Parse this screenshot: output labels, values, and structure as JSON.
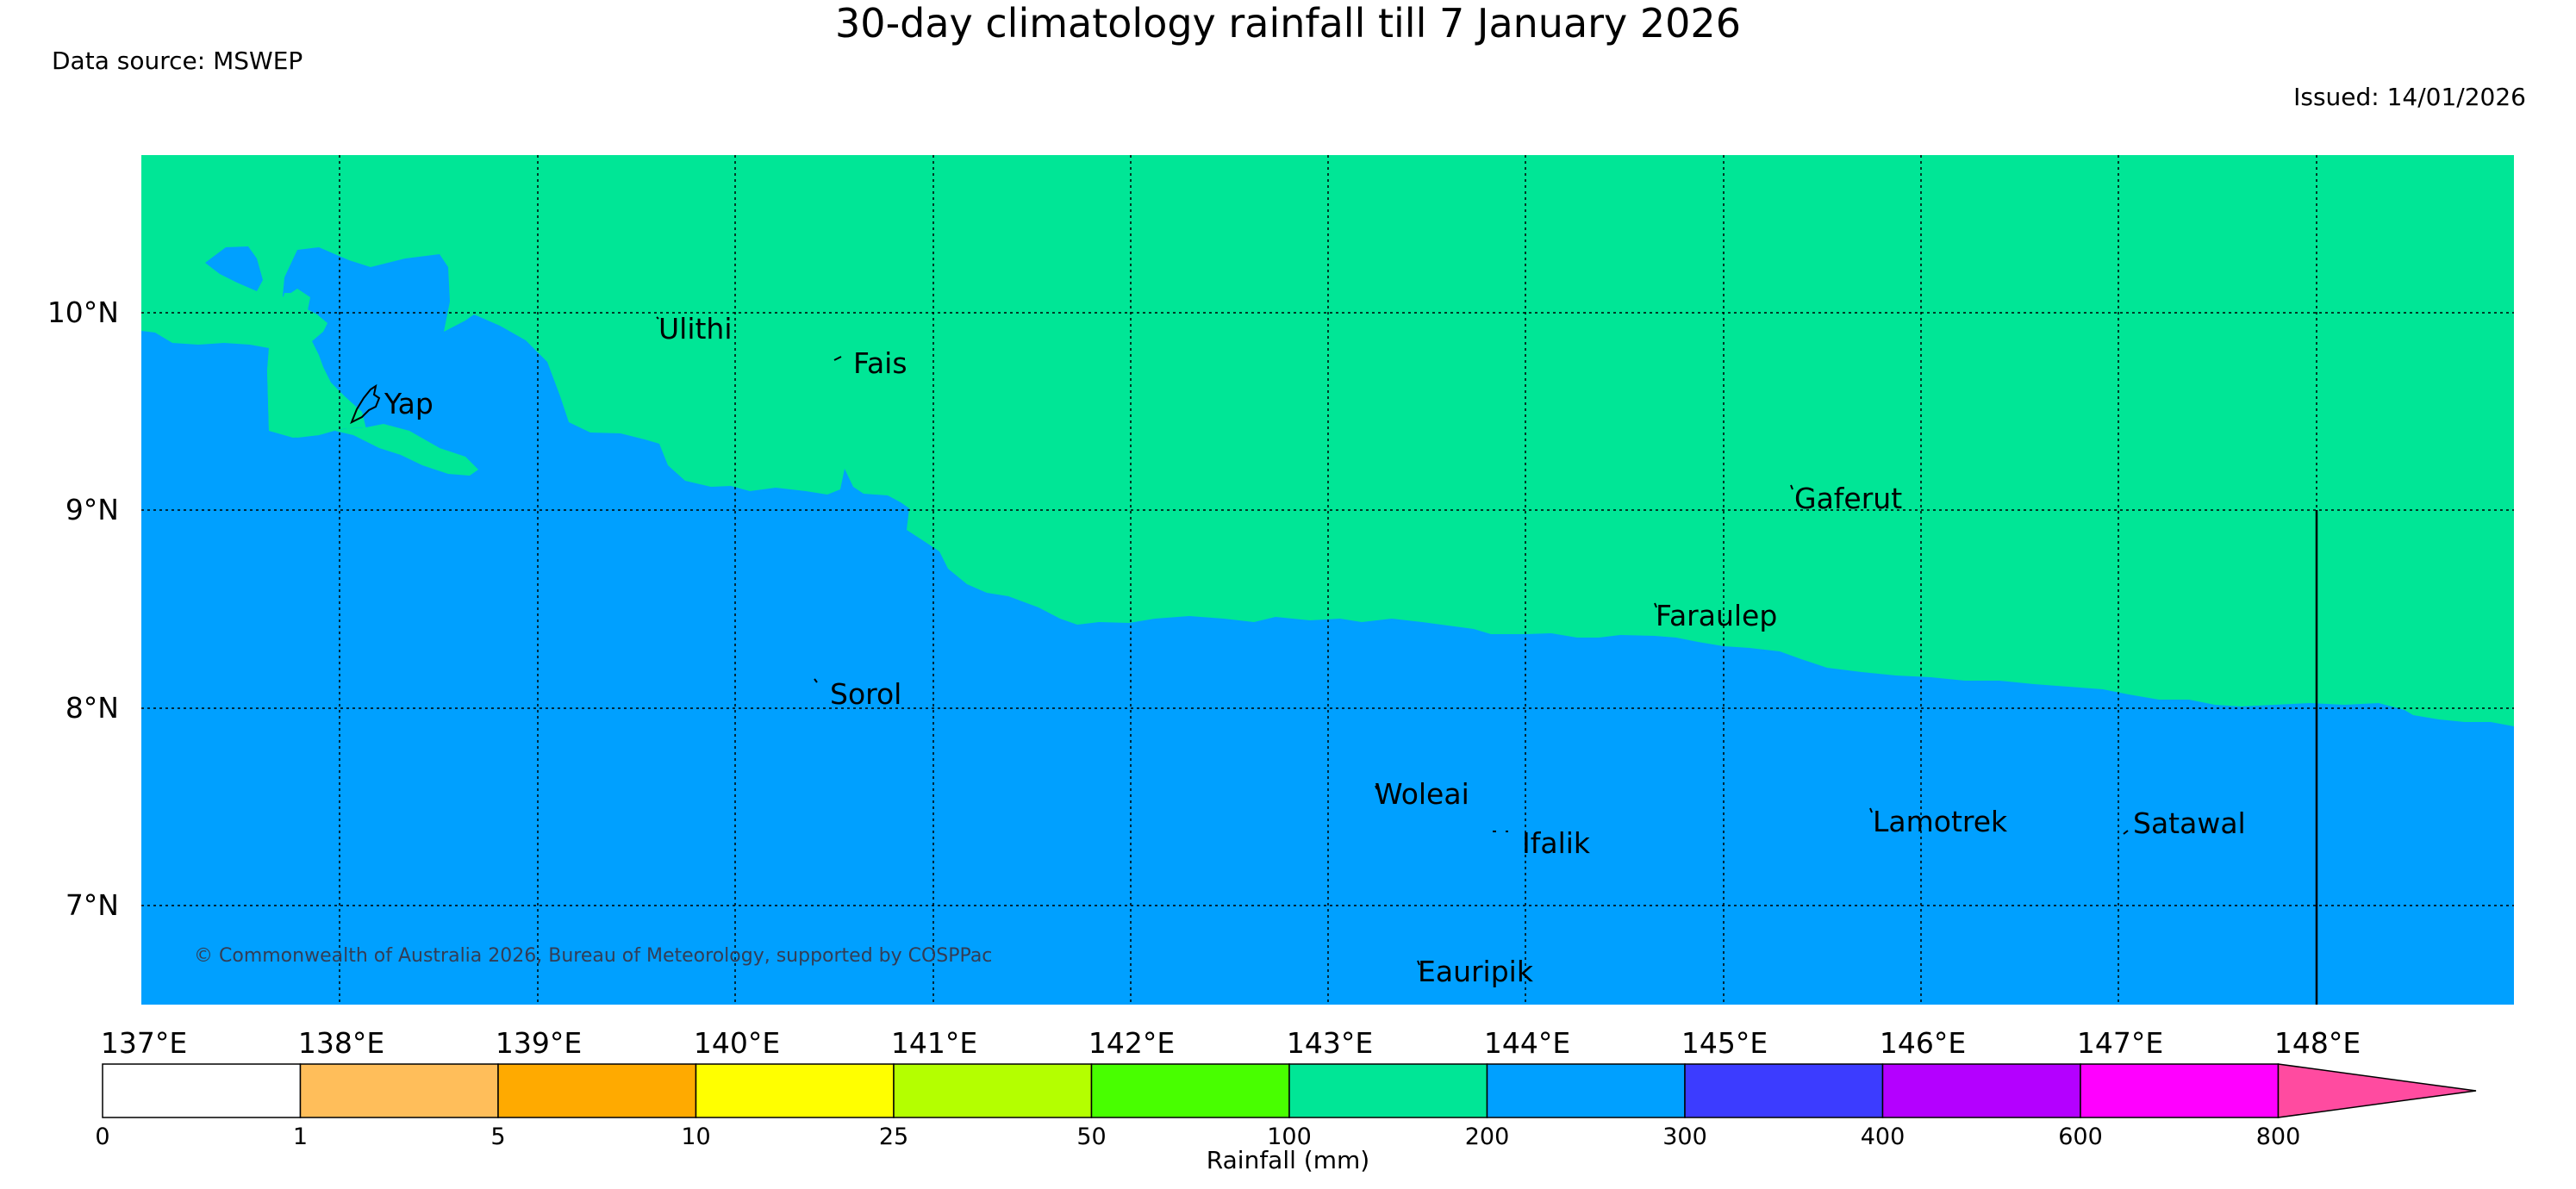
{
  "header": {
    "title": "30-day climatology rainfall till 7 January 2026",
    "data_source": "Data source: MSWEP",
    "issued": "Issued: 14/01/2026"
  },
  "map": {
    "lon_range": [
      137.0,
      149.0
    ],
    "lat_range": [
      6.5,
      10.8
    ],
    "lon_ticks": [
      {
        "value": 137,
        "label": "137°E"
      },
      {
        "value": 138,
        "label": "138°E"
      },
      {
        "value": 139,
        "label": "139°E"
      },
      {
        "value": 140,
        "label": "140°E"
      },
      {
        "value": 141,
        "label": "141°E"
      },
      {
        "value": 142,
        "label": "142°E"
      },
      {
        "value": 143,
        "label": "143°E"
      },
      {
        "value": 144,
        "label": "144°E"
      },
      {
        "value": 145,
        "label": "145°E"
      },
      {
        "value": 146,
        "label": "146°E"
      },
      {
        "value": 147,
        "label": "147°E"
      },
      {
        "value": 148,
        "label": "148°E"
      }
    ],
    "lat_ticks": [
      {
        "value": 10,
        "label": "10°N"
      },
      {
        "value": 9,
        "label": "9°N"
      },
      {
        "value": 8,
        "label": "8°N"
      },
      {
        "value": 7,
        "label": "7°N"
      }
    ],
    "places": [
      {
        "name": "Ulithi",
        "lon": 139.78,
        "lat": 9.91
      },
      {
        "name": "Fais",
        "lon": 140.52,
        "lat": 9.76
      },
      {
        "name": "Yap",
        "lon": 138.14,
        "lat": 9.51
      },
      {
        "name": "Gaferut",
        "lon": 145.37,
        "lat": 9.08
      },
      {
        "name": "Faraulep",
        "lon": 144.67,
        "lat": 8.48
      },
      {
        "name": "Sorol",
        "lon": 140.39,
        "lat": 8.08
      },
      {
        "name": "Woleai",
        "lon": 143.23,
        "lat": 7.55
      },
      {
        "name": "Ifalik",
        "lon": 144.0,
        "lat": 7.3
      },
      {
        "name": "Lamotrek",
        "lon": 145.8,
        "lat": 7.44
      },
      {
        "name": "Satawal",
        "lon": 147.03,
        "lat": 7.33
      },
      {
        "name": "Eauripik",
        "lon": 143.45,
        "lat": 6.63
      }
    ],
    "copyright": "© Commonwealth of Australia 2026, Bureau of Meteorology, supported by COSPPac"
  },
  "legend": {
    "label": "Rainfall (mm)",
    "boundaries": [
      "0",
      "1",
      "5",
      "10",
      "25",
      "50",
      "100",
      "200",
      "300",
      "400",
      "600",
      "800"
    ],
    "colors": [
      "#ffffff",
      "#ffbe5a",
      "#ffaa00",
      "#ffff00",
      "#b4ff00",
      "#48ff00",
      "#00e696",
      "#00a0ff",
      "#3c3cff",
      "#b400ff",
      "#ff00ff",
      "#ff4ba0"
    ]
  },
  "chart_data": {
    "type": "heatmap",
    "title": "30-day climatology rainfall till 7 January 2026",
    "regions": [
      {
        "category": "100-200 mm",
        "color": "#00e696",
        "area": "north of approx. 9.2°N in the west to 8.0°N in the east, plus area around Yap"
      },
      {
        "category": "200-300 mm",
        "color": "#00a0ff",
        "area": "south of the boundary, covering Sorol, Woleai, Ifalik, Lamotrek, Satawal, Eauripik"
      }
    ]
  }
}
